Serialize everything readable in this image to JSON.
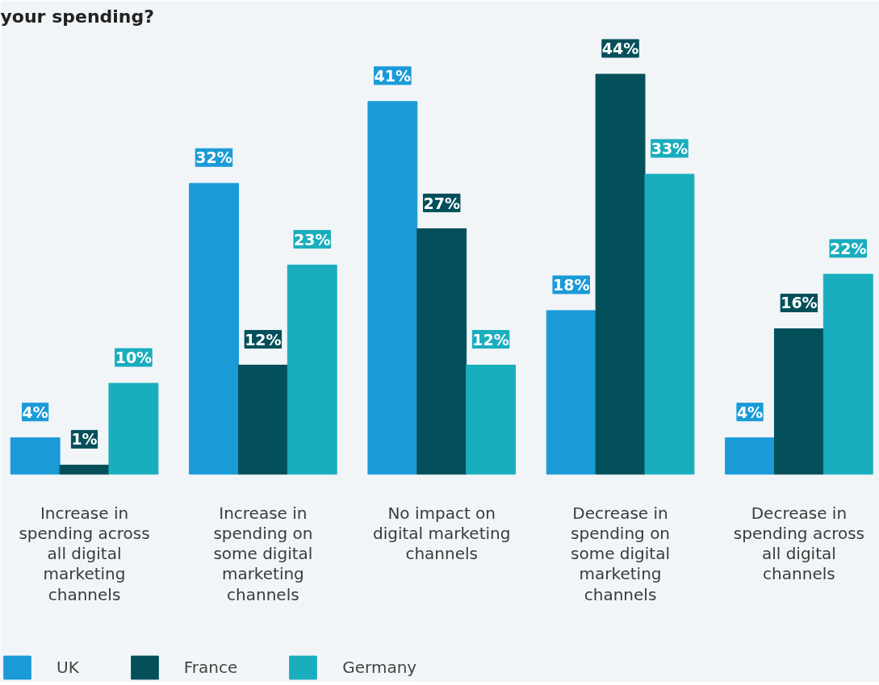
{
  "chart_data": {
    "type": "bar",
    "title": "your spending?",
    "categories": [
      "Increase in\nspending across\nall digital\nmarketing\nchannels",
      "Increase in\nspending on\nsome digital\nmarketing\nchannels",
      "No impact on\ndigital marketing\nchannels",
      "Decrease in\nspending on\nsome digital\nmarketing\nchannels",
      "Decrease in\nspending across\nall digital\nchannels"
    ],
    "series": [
      {
        "name": "UK",
        "color": "#1a9bd7",
        "values": [
          4,
          32,
          41,
          18,
          4
        ],
        "value_labels": [
          "4%",
          "32%",
          "41%",
          "18%",
          "4%"
        ]
      },
      {
        "name": "France",
        "color": "#034f5a",
        "values": [
          1,
          12,
          27,
          44,
          16
        ],
        "value_labels": [
          "1%",
          "12%",
          "27%",
          "44%",
          "16%"
        ]
      },
      {
        "name": "Germany",
        "color": "#19adbd",
        "values": [
          10,
          23,
          12,
          33,
          22
        ],
        "value_labels": [
          "10%",
          "23%",
          "12%",
          "33%",
          "22%"
        ]
      }
    ],
    "tick_labels": "x",
    "grid": false,
    "legend": "bottom left"
  }
}
